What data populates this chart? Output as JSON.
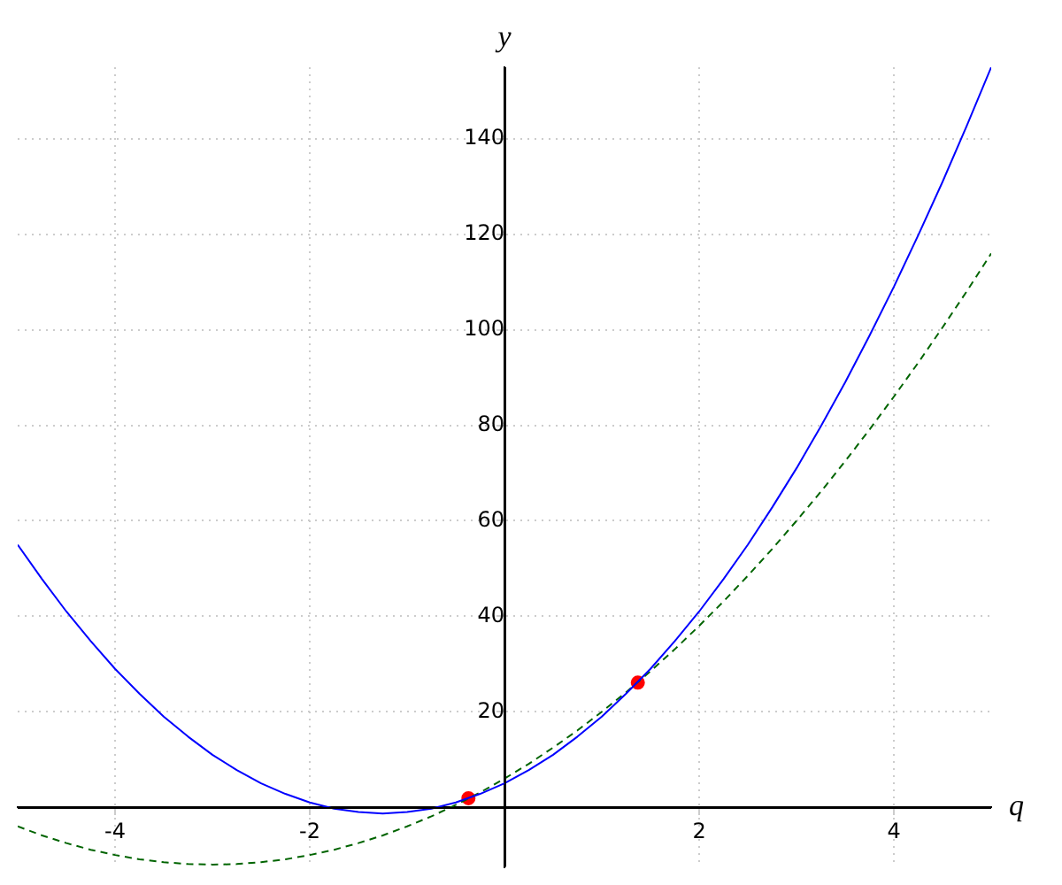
{
  "chart_data": {
    "type": "line",
    "xlabel": "q",
    "ylabel": "y",
    "xlim": [
      -5,
      5
    ],
    "ylim": [
      -12.5,
      155
    ],
    "xticks": [
      -4,
      -2,
      2,
      4
    ],
    "yticks": [
      20,
      40,
      60,
      80,
      100,
      120,
      140
    ],
    "grid": true,
    "legend": false,
    "marker": "none",
    "x": [
      -5,
      -4.75,
      -4.5,
      -4.25,
      -4,
      -3.75,
      -3.5,
      -3.25,
      -3,
      -2.75,
      -2.5,
      -2.25,
      -2,
      -1.75,
      -1.5,
      -1.25,
      -1,
      -0.75,
      -0.5,
      -0.25,
      0,
      0.25,
      0.5,
      0.75,
      1,
      1.25,
      1.5,
      1.75,
      2,
      2.25,
      2.5,
      2.75,
      3,
      3.25,
      3.5,
      3.75,
      4,
      4.25,
      4.5,
      4.75,
      5
    ],
    "series": [
      {
        "type": "line",
        "color": "#0000ff",
        "line_style": "solid",
        "values": [
          55,
          47.8,
          41,
          34.8,
          29,
          23.8,
          19,
          14.8,
          11,
          7.8,
          5,
          2.8,
          1,
          -0.3,
          -1,
          -1.3,
          -1,
          -0.3,
          1,
          2.8,
          5,
          7.8,
          11,
          14.8,
          19,
          23.8,
          29,
          34.8,
          41,
          47.8,
          55,
          62.8,
          71,
          79.8,
          89,
          98.8,
          109,
          119.8,
          131,
          142.8,
          155
        ]
      },
      {
        "type": "line",
        "color": "#006400",
        "line_style": "dashed",
        "values": [
          -4,
          -5.9,
          -7.5,
          -8.9,
          -10,
          -10.9,
          -11.5,
          -11.9,
          -12,
          -11.9,
          -11.5,
          -10.9,
          -10,
          -8.9,
          -7.5,
          -5.9,
          -4,
          -1.9,
          0.5,
          3.1,
          6,
          9.1,
          12.5,
          16.1,
          20,
          24.1,
          28.5,
          33.1,
          38,
          43.1,
          48.5,
          54.1,
          60,
          66.1,
          72.5,
          79.1,
          86,
          93.1,
          100.5,
          108.1,
          116
        ]
      },
      {
        "type": "scatter",
        "color": "#ff0000",
        "marker": "circle",
        "x": [
          -0.37,
          1.37
        ],
        "values": [
          1.9,
          26.1
        ]
      }
    ]
  }
}
